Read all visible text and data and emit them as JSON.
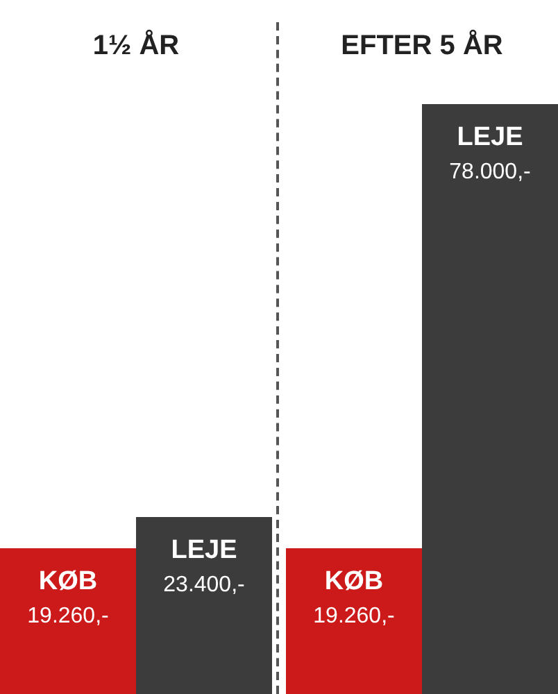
{
  "chart_data": [
    {
      "type": "bar",
      "title": "1½ ÅR",
      "categories": [
        "KØB",
        "LEJE"
      ],
      "values": [
        19260,
        23400
      ],
      "colors": [
        "#cc1a1a",
        "#3c3c3c"
      ],
      "value_labels": [
        "19.260,-",
        "23.400,-"
      ],
      "tick_labels": false
    },
    {
      "type": "bar",
      "title": "EFTER 5 ÅR",
      "categories": [
        "KØB",
        "LEJE"
      ],
      "values": [
        19260,
        78000
      ],
      "colors": [
        "#cc1a1a",
        "#3c3c3c"
      ],
      "value_labels": [
        "19.260,-",
        "78.000,-"
      ],
      "tick_labels": false
    }
  ]
}
